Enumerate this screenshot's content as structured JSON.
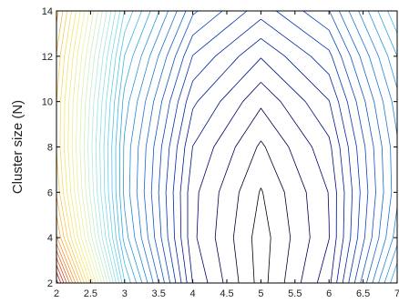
{
  "chart_data": {
    "type": "contour",
    "title": "",
    "xlabel": "",
    "ylabel": "Cluster size (N)",
    "xlim": [
      2,
      7
    ],
    "ylim": [
      2,
      14
    ],
    "x_ticks": [
      2,
      2.5,
      3,
      3.5,
      4,
      4.5,
      5,
      5.5,
      6,
      6.5,
      7
    ],
    "x_tick_labels": [
      "2",
      "2.5",
      "3",
      "3.5",
      "4",
      "4.5",
      "5",
      "5.5",
      "6",
      "6.5",
      "7"
    ],
    "y_ticks": [
      2,
      4,
      6,
      8,
      10,
      12,
      14
    ],
    "y_tick_labels": [
      "2",
      "4",
      "6",
      "8",
      "10",
      "12",
      "14"
    ],
    "x_grid": [
      2,
      3,
      4,
      5,
      6,
      7
    ],
    "y_grid": [
      2,
      4,
      6,
      8,
      10,
      12,
      14
    ],
    "z_min": 0,
    "z_max": 100,
    "levels": 40,
    "colormap": [
      "#000000",
      "#000070",
      "#0030b0",
      "#1a6cd0",
      "#30a8e0",
      "#70d8ea",
      "#b8ead8",
      "#e8f2a0",
      "#f8e060",
      "#f8a838",
      "#e05020",
      "#900010"
    ],
    "grid": false,
    "legend": "none"
  }
}
